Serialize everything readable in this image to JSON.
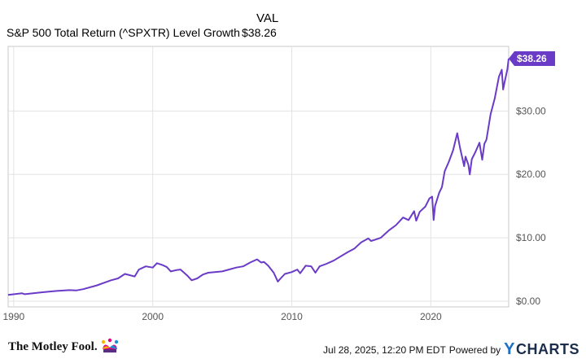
{
  "legend": {
    "column_header": "VAL",
    "series_label": "S&P 500 Total Return (^SPXTR) Level Growth",
    "series_value": "$38.26"
  },
  "chart_data": {
    "type": "line",
    "title": "",
    "xlabel": "",
    "ylabel": "",
    "x_ticks": [
      "1990",
      "2000",
      "2010",
      "2020"
    ],
    "y_ticks": [
      "$0.00",
      "$10.00",
      "$20.00",
      "$30.00"
    ],
    "ylim": [
      0,
      38.26
    ],
    "xlim": [
      1989.6,
      2025.6
    ],
    "grid": true,
    "line_color": "#6a3bc7",
    "end_label": "$38.26",
    "series": [
      {
        "name": "S&P 500 Total Return (^SPXTR) Level Growth",
        "x": [
          1989.6,
          1990.6,
          1990.8,
          1992,
          1993,
          1994,
          1994.5,
          1995,
          1996,
          1997,
          1997.5,
          1998,
          1998.7,
          1999,
          1999.5,
          2000,
          2000.3,
          2000.7,
          2001,
          2001.3,
          2001.7,
          2002,
          2002.5,
          2002.8,
          2003.2,
          2003.6,
          2004,
          2005,
          2006,
          2006.5,
          2007,
          2007.5,
          2007.8,
          2008,
          2008.3,
          2008.7,
          2009,
          2009.2,
          2009.5,
          2010,
          2010.4,
          2010.6,
          2011,
          2011.4,
          2011.7,
          2012,
          2012.5,
          2013,
          2014,
          2014.5,
          2014.8,
          2015,
          2015.5,
          2015.7,
          2016,
          2016.4,
          2017,
          2017.5,
          2018,
          2018.4,
          2018.8,
          2018.95,
          2019.2,
          2019.6,
          2019.9,
          2020.1,
          2020.2,
          2020.3,
          2020.6,
          2020.8,
          2021,
          2021.3,
          2021.6,
          2021.9,
          2022.1,
          2022.4,
          2022.5,
          2022.7,
          2022.8,
          2022.95,
          2023.2,
          2023.5,
          2023.7,
          2023.85,
          2024,
          2024.3,
          2024.6,
          2024.9,
          2025.1,
          2025.2,
          2025.3,
          2025.5,
          2025.6
        ],
        "values": [
          1.0,
          1.25,
          1.1,
          1.4,
          1.6,
          1.75,
          1.7,
          1.9,
          2.5,
          3.3,
          3.6,
          4.3,
          3.9,
          5.0,
          5.5,
          5.3,
          6.0,
          5.7,
          5.4,
          4.7,
          4.9,
          5.0,
          4.0,
          3.3,
          3.6,
          4.2,
          4.5,
          4.7,
          5.3,
          5.5,
          6.1,
          6.6,
          6.1,
          6.2,
          5.6,
          4.5,
          3.1,
          3.6,
          4.3,
          4.6,
          5.0,
          4.4,
          5.6,
          5.5,
          4.5,
          5.5,
          5.9,
          6.4,
          7.7,
          8.3,
          8.9,
          9.3,
          9.9,
          9.5,
          9.7,
          10.0,
          11.2,
          12.0,
          13.2,
          12.8,
          14.2,
          12.7,
          14.1,
          14.9,
          16.2,
          16.5,
          12.8,
          15.0,
          17.1,
          18.0,
          20.5,
          22.0,
          23.8,
          26.5,
          24.2,
          21.3,
          22.8,
          21.5,
          20.0,
          22.4,
          23.5,
          25.0,
          22.3,
          24.8,
          25.5,
          29.5,
          32.0,
          35.4,
          36.5,
          33.4,
          34.5,
          36.5,
          38.26
        ]
      }
    ]
  },
  "footer": {
    "brand": "The Motley Fool.",
    "timestamp": "Jul 28, 2025, 12:20 PM EDT",
    "powered_by": "Powered by",
    "provider_y": "Y",
    "provider_rest": "CHARTS"
  }
}
